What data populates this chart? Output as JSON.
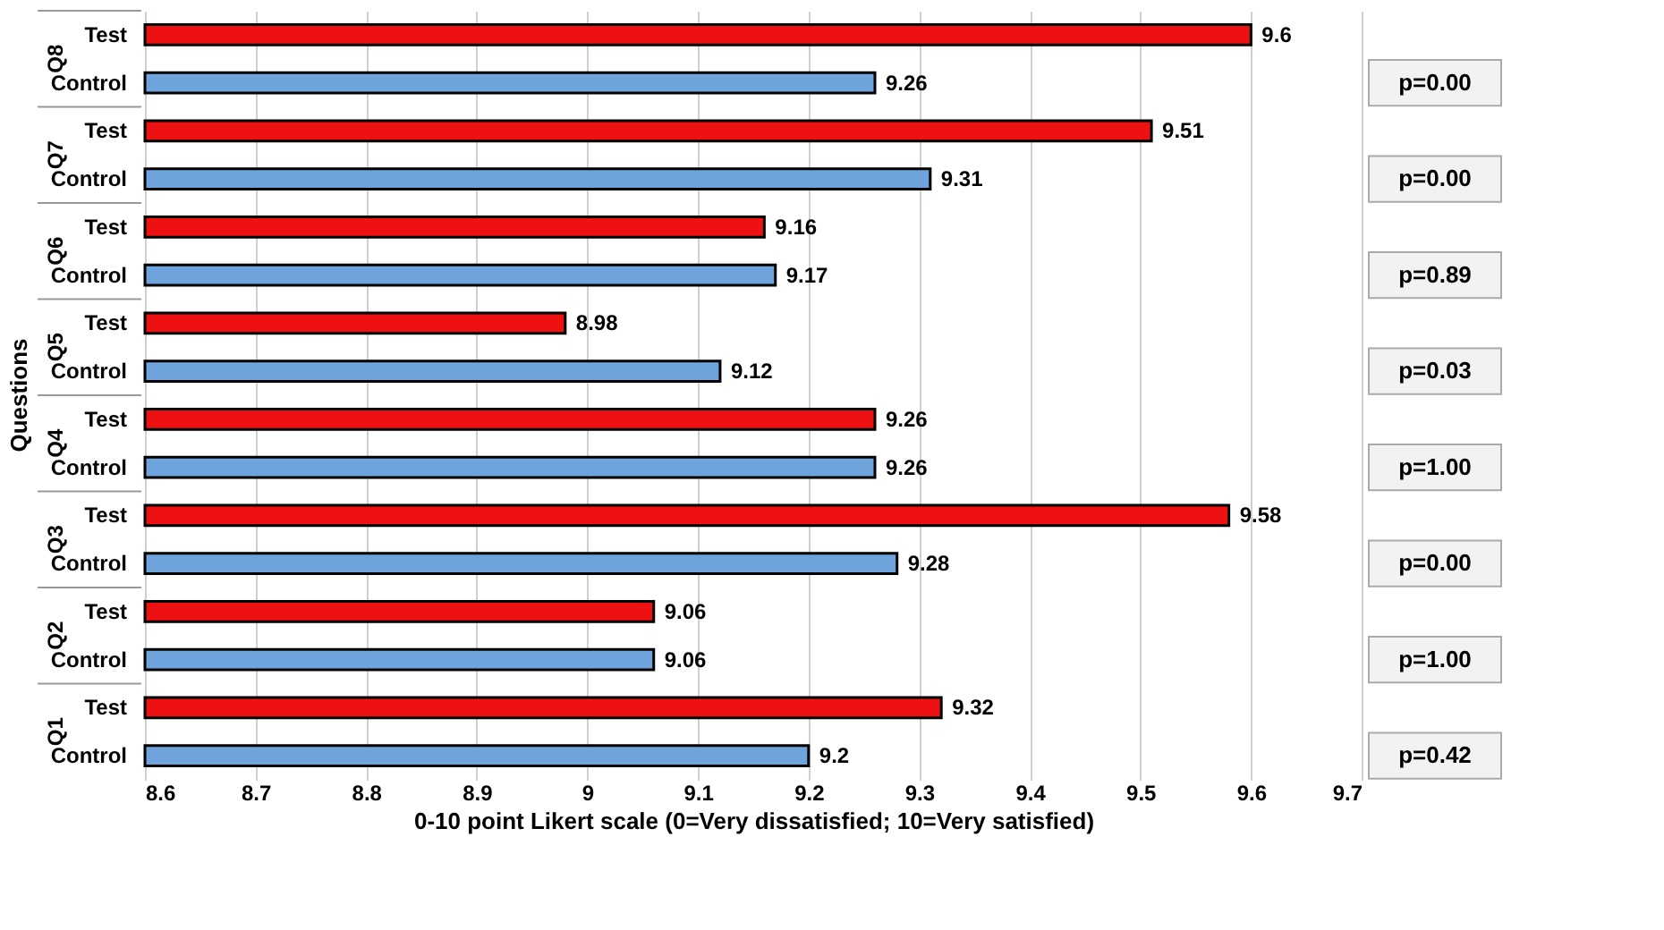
{
  "chart_data": {
    "type": "bar",
    "orientation": "horizontal",
    "xlabel": "0-10 point Likert scale (0=Very dissatisfied; 10=Very satisfied)",
    "ylabel": "Questions",
    "categories": [
      "Q8",
      "Q7",
      "Q6",
      "Q5",
      "Q4",
      "Q3",
      "Q2",
      "Q1"
    ],
    "series": [
      {
        "name": "Test",
        "color": "#ee1111",
        "values": [
          9.6,
          9.51,
          9.16,
          8.98,
          9.26,
          9.58,
          9.06,
          9.32
        ]
      },
      {
        "name": "Control",
        "color": "#6fa3dc",
        "values": [
          9.26,
          9.31,
          9.17,
          9.12,
          9.26,
          9.28,
          9.06,
          9.2
        ]
      }
    ],
    "xlim": [
      8.6,
      9.7
    ],
    "xticks": [
      8.6,
      8.7,
      8.8,
      8.9,
      9,
      9.1,
      9.2,
      9.3,
      9.4,
      9.5,
      9.6,
      9.7
    ],
    "grid": "x",
    "data_labels": true,
    "annotations": [
      "p=0.00",
      "p=0.00",
      "p=0.89",
      "p=0.03",
      "p=1.00",
      "p=0.00",
      "p=1.00",
      "p=0.42"
    ]
  }
}
